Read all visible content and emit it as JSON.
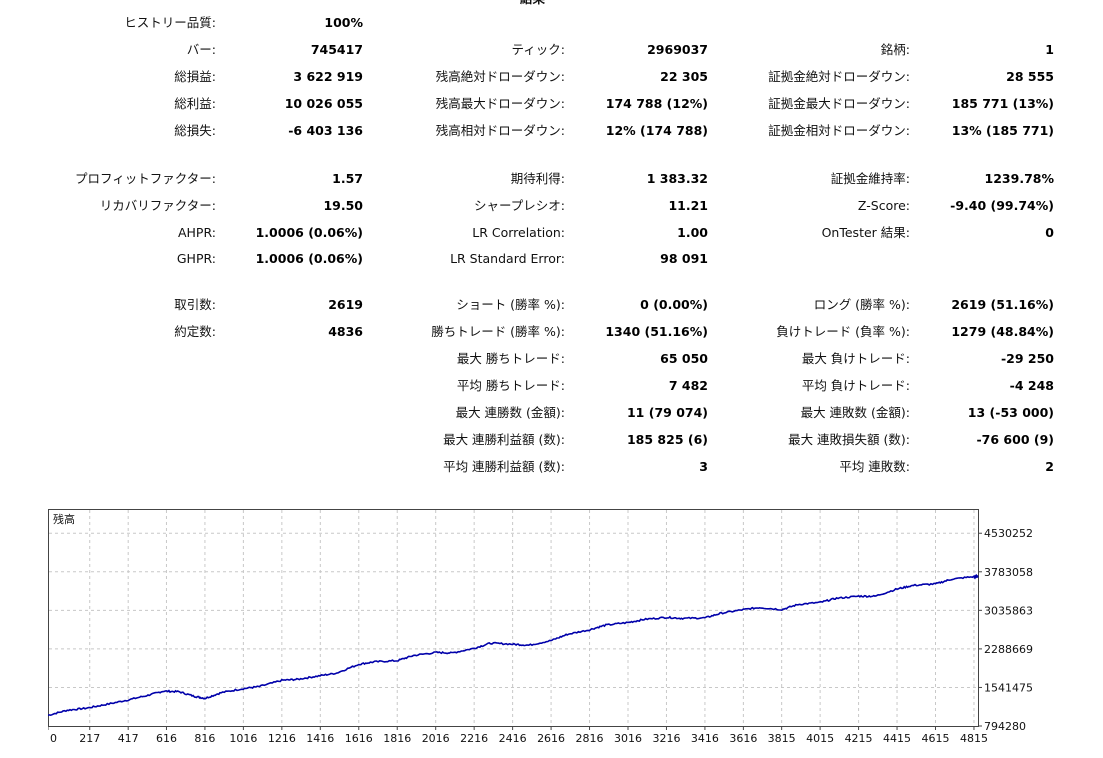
{
  "header_partial": "結果",
  "stats": [
    {
      "key": "history_quality",
      "label": "ヒストリー品質:",
      "value": "100%",
      "col": 0,
      "row": 0
    },
    {
      "key": "bars",
      "label": "バー:",
      "value": "745417",
      "col": 0,
      "row": 1
    },
    {
      "key": "ticks",
      "label": "ティック:",
      "value": "2969037",
      "col": 1,
      "row": 1
    },
    {
      "key": "symbols",
      "label": "銘柄:",
      "value": "1",
      "col": 2,
      "row": 1
    },
    {
      "key": "total_net_profit",
      "label": "総損益:",
      "value": "3 622 919",
      "col": 0,
      "row": 2
    },
    {
      "key": "balance_dd_abs",
      "label": "残高絶対ドローダウン:",
      "value": "22 305",
      "col": 1,
      "row": 2
    },
    {
      "key": "equity_dd_abs",
      "label": "証拠金絶対ドローダウン:",
      "value": "28 555",
      "col": 2,
      "row": 2
    },
    {
      "key": "gross_profit",
      "label": "総利益:",
      "value": "10 026 055",
      "col": 0,
      "row": 3
    },
    {
      "key": "balance_dd_max",
      "label": "残高最大ドローダウン:",
      "value": "174 788 (12%)",
      "col": 1,
      "row": 3
    },
    {
      "key": "equity_dd_max",
      "label": "証拠金最大ドローダウン:",
      "value": "185 771 (13%)",
      "col": 2,
      "row": 3
    },
    {
      "key": "gross_loss",
      "label": "総損失:",
      "value": "-6 403 136",
      "col": 0,
      "row": 4
    },
    {
      "key": "balance_dd_rel",
      "label": "残高相対ドローダウン:",
      "value": "12% (174 788)",
      "col": 1,
      "row": 4
    },
    {
      "key": "equity_dd_rel",
      "label": "証拠金相対ドローダウン:",
      "value": "13% (185 771)",
      "col": 2,
      "row": 4
    },
    {
      "key": "profit_factor",
      "label": "プロフィットファクター:",
      "value": "1.57",
      "col": 0,
      "row": 5
    },
    {
      "key": "expected_payoff",
      "label": "期待利得:",
      "value": "1 383.32",
      "col": 1,
      "row": 5
    },
    {
      "key": "margin_level",
      "label": "証拠金維持率:",
      "value": "1239.78%",
      "col": 2,
      "row": 5
    },
    {
      "key": "recovery_factor",
      "label": "リカバリファクター:",
      "value": "19.50",
      "col": 0,
      "row": 6
    },
    {
      "key": "sharpe",
      "label": "シャープレシオ:",
      "value": "11.21",
      "col": 1,
      "row": 6
    },
    {
      "key": "z_score",
      "label": "Z-Score:",
      "value": "-9.40 (99.74%)",
      "col": 2,
      "row": 6
    },
    {
      "key": "ahpr",
      "label": "AHPR:",
      "value": "1.0006 (0.06%)",
      "col": 0,
      "row": 7
    },
    {
      "key": "lr_corr",
      "label": "LR Correlation:",
      "value": "1.00",
      "col": 1,
      "row": 7
    },
    {
      "key": "ontester",
      "label": "OnTester 結果:",
      "value": "0",
      "col": 2,
      "row": 7
    },
    {
      "key": "ghpr",
      "label": "GHPR:",
      "value": "1.0006 (0.06%)",
      "col": 0,
      "row": 8
    },
    {
      "key": "lr_std_err",
      "label": "LR Standard Error:",
      "value": "98 091",
      "col": 1,
      "row": 8
    },
    {
      "key": "total_trades",
      "label": "取引数:",
      "value": "2619",
      "col": 0,
      "row": 9
    },
    {
      "key": "short_trades",
      "label": "ショート (勝率 %):",
      "value": "0 (0.00%)",
      "col": 1,
      "row": 9
    },
    {
      "key": "long_trades",
      "label": "ロング (勝率 %):",
      "value": "2619 (51.16%)",
      "col": 2,
      "row": 9
    },
    {
      "key": "total_deals",
      "label": "約定数:",
      "value": "4836",
      "col": 0,
      "row": 10
    },
    {
      "key": "profit_trades",
      "label": "勝ちトレード (勝率 %):",
      "value": "1340 (51.16%)",
      "col": 1,
      "row": 10
    },
    {
      "key": "loss_trades",
      "label": "負けトレード (負率 %):",
      "value": "1279 (48.84%)",
      "col": 2,
      "row": 10
    },
    {
      "key": "largest_profit",
      "label": "最大 勝ちトレード:",
      "value": "65 050",
      "col": 1,
      "row": 11
    },
    {
      "key": "largest_loss",
      "label": "最大 負けトレード:",
      "value": "-29 250",
      "col": 2,
      "row": 11
    },
    {
      "key": "avg_profit",
      "label": "平均 勝ちトレード:",
      "value": "7 482",
      "col": 1,
      "row": 12
    },
    {
      "key": "avg_loss",
      "label": "平均 負けトレード:",
      "value": "-4 248",
      "col": 2,
      "row": 12
    },
    {
      "key": "max_consec_wins",
      "label": "最大 連勝数 (金額):",
      "value": "11 (79 074)",
      "col": 1,
      "row": 13
    },
    {
      "key": "max_consec_losses",
      "label": "最大 連敗数 (金額):",
      "value": "13 (-53 000)",
      "col": 2,
      "row": 13
    },
    {
      "key": "max_consec_profit",
      "label": "最大 連勝利益額 (数):",
      "value": "185 825 (6)",
      "col": 1,
      "row": 14
    },
    {
      "key": "max_consec_loss",
      "label": "最大 連敗損失額 (数):",
      "value": "-76 600 (9)",
      "col": 2,
      "row": 14
    },
    {
      "key": "avg_consec_wins",
      "label": "平均 連勝利益額 (数):",
      "value": "3",
      "col": 1,
      "row": 15
    },
    {
      "key": "avg_consec_losses",
      "label": "平均 連敗数:",
      "value": "2",
      "col": 2,
      "row": 15
    }
  ],
  "chart_data": {
    "type": "line",
    "title": "残高",
    "x_ticks": [
      "0",
      "217",
      "417",
      "616",
      "816",
      "1016",
      "1216",
      "1416",
      "1616",
      "1816",
      "2016",
      "2216",
      "2416",
      "2616",
      "2816",
      "3016",
      "3216",
      "3416",
      "3616",
      "3815",
      "4015",
      "4215",
      "4415",
      "4615",
      "4815"
    ],
    "y_ticks": [
      "4530252",
      "3783058",
      "3035863",
      "2288669",
      "1541475",
      "794280"
    ],
    "xlim": [
      0,
      4836
    ],
    "ylim": [
      794280,
      5000000
    ],
    "grid": true,
    "series": [
      {
        "color": "#0000aa",
        "points": [
          [
            0,
            1000000
          ],
          [
            100,
            1100000
          ],
          [
            200,
            1140000
          ],
          [
            300,
            1210000
          ],
          [
            417,
            1300000
          ],
          [
            520,
            1390000
          ],
          [
            600,
            1470000
          ],
          [
            680,
            1460000
          ],
          [
            760,
            1370000
          ],
          [
            816,
            1330000
          ],
          [
            900,
            1440000
          ],
          [
            1016,
            1520000
          ],
          [
            1100,
            1560000
          ],
          [
            1216,
            1680000
          ],
          [
            1300,
            1700000
          ],
          [
            1400,
            1760000
          ],
          [
            1500,
            1820000
          ],
          [
            1616,
            1990000
          ],
          [
            1700,
            2040000
          ],
          [
            1816,
            2060000
          ],
          [
            1900,
            2160000
          ],
          [
            2016,
            2220000
          ],
          [
            2100,
            2210000
          ],
          [
            2216,
            2300000
          ],
          [
            2300,
            2400000
          ],
          [
            2416,
            2380000
          ],
          [
            2500,
            2360000
          ],
          [
            2616,
            2450000
          ],
          [
            2700,
            2570000
          ],
          [
            2816,
            2660000
          ],
          [
            2900,
            2750000
          ],
          [
            3016,
            2800000
          ],
          [
            3100,
            2860000
          ],
          [
            3216,
            2900000
          ],
          [
            3300,
            2880000
          ],
          [
            3416,
            2890000
          ],
          [
            3500,
            2980000
          ],
          [
            3616,
            3050000
          ],
          [
            3700,
            3090000
          ],
          [
            3816,
            3050000
          ],
          [
            3900,
            3150000
          ],
          [
            4016,
            3190000
          ],
          [
            4100,
            3270000
          ],
          [
            4216,
            3310000
          ],
          [
            4300,
            3310000
          ],
          [
            4416,
            3450000
          ],
          [
            4500,
            3520000
          ],
          [
            4616,
            3550000
          ],
          [
            4700,
            3640000
          ],
          [
            4815,
            3690000
          ],
          [
            4836,
            3700000
          ]
        ]
      }
    ]
  }
}
